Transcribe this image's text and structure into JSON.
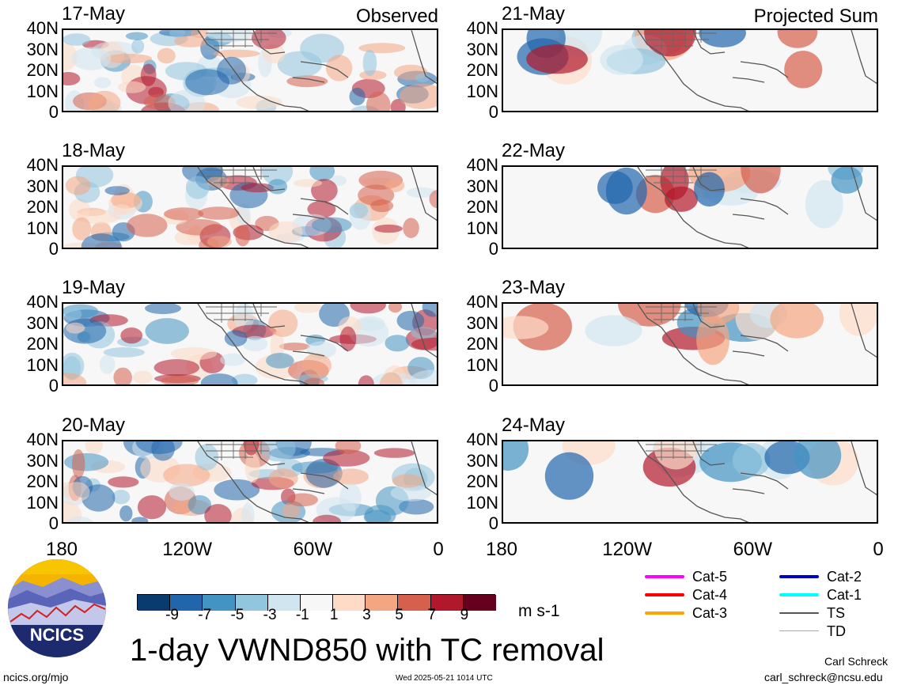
{
  "panels_left": [
    {
      "date": "17-May",
      "label": "Observed"
    },
    {
      "date": "18-May",
      "label": ""
    },
    {
      "date": "19-May",
      "label": ""
    },
    {
      "date": "20-May",
      "label": ""
    }
  ],
  "panels_right": [
    {
      "date": "21-May",
      "label": "Projected Sum"
    },
    {
      "date": "22-May",
      "label": ""
    },
    {
      "date": "23-May",
      "label": ""
    },
    {
      "date": "24-May",
      "label": ""
    }
  ],
  "lat_labels": [
    "40N",
    "30N",
    "20N",
    "10N",
    "0"
  ],
  "lon_labels": [
    "180",
    "120W",
    "60W",
    "0"
  ],
  "colorbar": {
    "ticks": [
      "-9",
      "-7",
      "-5",
      "-3",
      "-1",
      "1",
      "3",
      "5",
      "7",
      "9"
    ],
    "colors": [
      "#0a3b6e",
      "#2166ac",
      "#4393c3",
      "#92c5de",
      "#d1e5f0",
      "#f7f7f7",
      "#fddbc7",
      "#f4a582",
      "#d6604d",
      "#b2182b",
      "#67001f"
    ],
    "units": "m s-1"
  },
  "title": "1-day VWND850 with TC removal",
  "tc_legend": [
    {
      "label": "Cat-5",
      "color": "#ff00ff"
    },
    {
      "label": "Cat-4",
      "color": "#ff0000"
    },
    {
      "label": "Cat-3",
      "color": "#ffa500"
    },
    {
      "label": "Cat-2",
      "color": "#0000cc"
    },
    {
      "label": "Cat-1",
      "color": "#00ffff"
    },
    {
      "label": "TS",
      "color": "#555555"
    },
    {
      "label": "TD",
      "color": "#aaaaaa"
    }
  ],
  "logo_text": "NCICS",
  "footer": {
    "url": "ncics.org/mjo",
    "timestamp": "Wed 2025-05-21 1014 UTC",
    "author": "Carl Schreck",
    "email": "carl_schreck@ncsu.edu"
  }
}
